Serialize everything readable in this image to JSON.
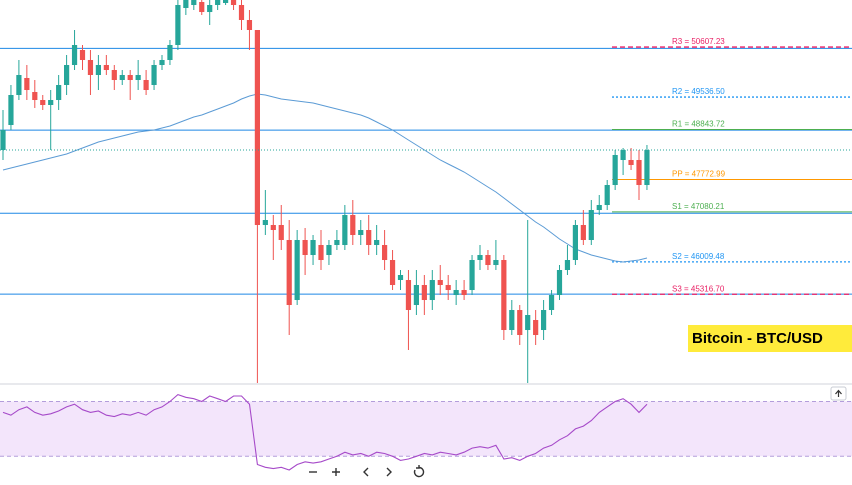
{
  "chart_data": {
    "type": "candlestick",
    "title": "Bitcoin - BTC/USD",
    "ylim": [
      43418,
      51614
    ],
    "up_color": "#26a69a",
    "down_color": "#ef5350",
    "open": [
      48404,
      48939,
      49581,
      49945,
      49645,
      49474,
      49367,
      49474,
      49795,
      50223,
      50544,
      50330,
      50009,
      50223,
      50116,
      49902,
      50009,
      49902,
      49902,
      49795,
      50223,
      50330,
      50651,
      51443,
      51507,
      51571,
      51357,
      51507,
      51550,
      51614,
      51507,
      51186,
      50972,
      46799,
      46799,
      46799,
      46478,
      45194,
      46478,
      46157,
      46371,
      46157,
      46371,
      46371,
      47013,
      46585,
      46692,
      46371,
      46371,
      46050,
      45622,
      45622,
      45087,
      45515,
      45194,
      45622,
      45515,
      45301,
      45408,
      45408,
      46050,
      46157,
      45943,
      46050,
      44552,
      44980,
      44552,
      44766,
      44552,
      44980,
      45301,
      45836,
      46050,
      46799,
      46478,
      47120,
      47227,
      47655,
      48190,
      48190,
      48190,
      47655
    ],
    "high": [
      49260,
      49795,
      50330,
      50223,
      49902,
      49581,
      49688,
      50009,
      50437,
      50972,
      50651,
      50544,
      50437,
      50437,
      50223,
      50116,
      50116,
      50330,
      50116,
      50330,
      50437,
      50758,
      51614,
      51614,
      51614,
      51614,
      51614,
      51614,
      51614,
      51614,
      51614,
      51400,
      50972,
      47548,
      47013,
      47227,
      46906,
      46692,
      46735,
      46585,
      46692,
      46478,
      46692,
      47227,
      47334,
      46906,
      47013,
      46799,
      46692,
      46264,
      45836,
      45836,
      45836,
      45729,
      45836,
      45943,
      45729,
      45622,
      45622,
      46157,
      46371,
      46264,
      46478,
      46157,
      45194,
      45087,
      46906,
      44980,
      45194,
      45408,
      45943,
      46371,
      46906,
      47120,
      47334,
      47441,
      47762,
      48404,
      48447,
      48447,
      48404,
      48511
    ],
    "low": [
      48190,
      48832,
      49474,
      49474,
      49303,
      49260,
      48404,
      49260,
      49581,
      50116,
      50116,
      49581,
      49688,
      50009,
      49688,
      49795,
      49474,
      49688,
      49581,
      49688,
      50116,
      50223,
      50544,
      51293,
      51400,
      51293,
      51079,
      51400,
      51507,
      51400,
      50972,
      50544,
      43418,
      46585,
      46050,
      46264,
      44445,
      45087,
      45729,
      45943,
      45836,
      45943,
      46264,
      46264,
      46371,
      46371,
      46157,
      46157,
      45836,
      45408,
      45408,
      44124,
      44873,
      44873,
      44980,
      45301,
      45194,
      45087,
      45194,
      45301,
      45836,
      45836,
      45836,
      44338,
      44445,
      44231,
      43418,
      44231,
      44338,
      44873,
      45194,
      45729,
      45943,
      46371,
      46371,
      47013,
      47120,
      47548,
      47869,
      47976,
      47334,
      47548
    ],
    "close": [
      48832,
      49581,
      50009,
      49688,
      49474,
      49367,
      49474,
      49795,
      50223,
      50651,
      50330,
      50009,
      50223,
      50116,
      49902,
      50009,
      49902,
      50009,
      49688,
      50223,
      50330,
      50651,
      51507,
      51614,
      51614,
      51357,
      51507,
      51614,
      51614,
      51507,
      51186,
      50972,
      46799,
      46906,
      46692,
      46478,
      45087,
      46478,
      46157,
      46478,
      46050,
      46371,
      46478,
      47013,
      46585,
      46692,
      46371,
      46478,
      46050,
      45515,
      45729,
      44980,
      45515,
      45194,
      45622,
      45515,
      45408,
      45408,
      45301,
      46050,
      46157,
      45943,
      46050,
      44552,
      44980,
      44445,
      44873,
      44445,
      44980,
      45301,
      45836,
      46050,
      46799,
      46478,
      47120,
      47227,
      47655,
      48297,
      48404,
      48083,
      47655,
      48404
    ],
    "ma": {
      "color": "#5b9bd5",
      "values": [
        47976,
        48019,
        48062,
        48104,
        48147,
        48190,
        48233,
        48276,
        48318,
        48383,
        48447,
        48511,
        48575,
        48618,
        48661,
        48704,
        48746,
        48789,
        48811,
        48832,
        48875,
        48918,
        48982,
        49046,
        49110,
        49153,
        49217,
        49281,
        49346,
        49410,
        49495,
        49560,
        49602,
        49581,
        49538,
        49495,
        49474,
        49453,
        49431,
        49410,
        49367,
        49324,
        49281,
        49239,
        49196,
        49153,
        49089,
        49003,
        48918,
        48832,
        48725,
        48618,
        48511,
        48404,
        48297,
        48190,
        48104,
        48019,
        47933,
        47826,
        47719,
        47612,
        47505,
        47377,
        47248,
        47120,
        46992,
        46863,
        46756,
        46628,
        46499,
        46392,
        46285,
        46221,
        46157,
        46114,
        46071,
        46028,
        46007,
        46028,
        46050,
        46093
      ]
    },
    "hlines": {
      "color": "#1e88e5",
      "values": [
        50580,
        48830,
        47050,
        45320
      ]
    },
    "pivots": [
      {
        "label": "R3 = 50607.23",
        "value": 50607.23,
        "color": "#e91e63",
        "style": "dashed"
      },
      {
        "label": "R2 = 49536.50",
        "value": 49536.5,
        "color": "#2196f3",
        "style": "dotted"
      },
      {
        "label": "R1 = 48843.72",
        "value": 48843.72,
        "color": "#4caf50",
        "style": "solid"
      },
      {
        "label": "PP = 47772.99",
        "value": 47772.99,
        "color": "#ff9800",
        "style": "solid"
      },
      {
        "label": "S1 = 47080.21",
        "value": 47080.21,
        "color": "#4caf50",
        "style": "solid"
      },
      {
        "label": "S2 = 46009.48",
        "value": 46009.48,
        "color": "#2196f3",
        "style": "dotted"
      },
      {
        "label": "S3 = 45316.70",
        "value": 45316.7,
        "color": "#e91e63",
        "style": "dashed"
      }
    ],
    "rsi": {
      "color": "#a64ac9",
      "band_color": "#f3e5fb",
      "ylim": [
        20,
        82
      ],
      "levels": [
        70,
        30
      ],
      "values": [
        62,
        60,
        64,
        66,
        62,
        60,
        61,
        63,
        66,
        68,
        64,
        62,
        63,
        60,
        59,
        61,
        60,
        62,
        60,
        64,
        66,
        70,
        75,
        73,
        72,
        70,
        74,
        72,
        70,
        74,
        74,
        68,
        24,
        22,
        21,
        22,
        20,
        24,
        26,
        25,
        26,
        28,
        30,
        33,
        31,
        32,
        30,
        33,
        32,
        30,
        27,
        28,
        30,
        32,
        31,
        33,
        32,
        31,
        33,
        36,
        37,
        36,
        38,
        28,
        29,
        27,
        30,
        32,
        36,
        38,
        42,
        45,
        50,
        52,
        56,
        62,
        66,
        70,
        72,
        68,
        62,
        68
      ]
    }
  }
}
